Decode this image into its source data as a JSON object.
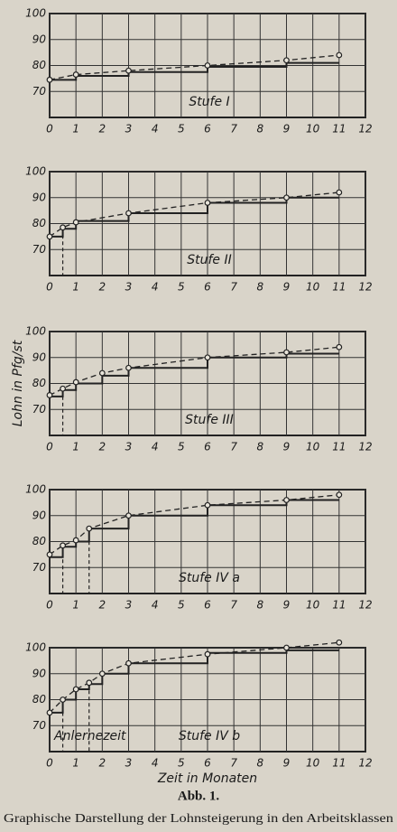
{
  "chart_data": [
    {
      "type": "line",
      "stage_label": "Stufe I",
      "xlim": [
        0,
        12
      ],
      "ylim": [
        60,
        100
      ],
      "xticks": [
        0,
        1,
        2,
        3,
        4,
        5,
        6,
        7,
        8,
        9,
        10,
        11,
        12
      ],
      "yticks": [
        70,
        80,
        90,
        100
      ],
      "grid": true,
      "droplines": [],
      "series": [
        {
          "step": true,
          "x": [
            0,
            1,
            3,
            6,
            9,
            11
          ],
          "values": [
            74.5,
            76,
            77.5,
            79.5,
            81,
            81
          ]
        },
        {
          "dashed": true,
          "markers": true,
          "x": [
            0,
            1,
            3,
            6,
            9,
            11
          ],
          "values": [
            74.5,
            76.5,
            78,
            80,
            82,
            84
          ]
        }
      ]
    },
    {
      "type": "line",
      "stage_label": "Stufe II",
      "xlim": [
        0,
        12
      ],
      "ylim": [
        60,
        100
      ],
      "xticks": [
        0,
        1,
        2,
        3,
        4,
        5,
        6,
        7,
        8,
        9,
        10,
        11,
        12
      ],
      "yticks": [
        70,
        80,
        90,
        100
      ],
      "grid": true,
      "droplines": [
        0.5
      ],
      "series": [
        {
          "step": true,
          "x": [
            0,
            0.5,
            1,
            3,
            6,
            9,
            11
          ],
          "values": [
            75,
            78,
            81,
            84,
            88,
            90,
            90
          ]
        },
        {
          "dashed": true,
          "markers": true,
          "x": [
            0,
            0.5,
            1,
            3,
            6,
            9,
            11
          ],
          "values": [
            75,
            78.5,
            80.5,
            84,
            88,
            90,
            92
          ]
        }
      ]
    },
    {
      "type": "line",
      "stage_label": "Stufe III",
      "ylabel": "Lohn in Pfg/st",
      "xlim": [
        0,
        12
      ],
      "ylim": [
        60,
        100
      ],
      "xticks": [
        0,
        1,
        2,
        3,
        4,
        5,
        6,
        7,
        8,
        9,
        10,
        11,
        12
      ],
      "yticks": [
        70,
        80,
        90,
        100
      ],
      "grid": true,
      "droplines": [
        0.5
      ],
      "series": [
        {
          "step": true,
          "x": [
            0,
            0.5,
            1,
            2,
            3,
            6,
            9,
            11
          ],
          "values": [
            75,
            77.5,
            80,
            83,
            86,
            90,
            91.5,
            91.5
          ]
        },
        {
          "dashed": true,
          "markers": true,
          "x": [
            0,
            0.5,
            1,
            2,
            3,
            6,
            9,
            11
          ],
          "values": [
            75.5,
            78,
            80.5,
            84,
            86,
            90,
            92,
            94
          ]
        }
      ]
    },
    {
      "type": "line",
      "stage_label": "Stufe IV a",
      "xlim": [
        0,
        12
      ],
      "ylim": [
        60,
        100
      ],
      "xticks": [
        0,
        1,
        2,
        3,
        4,
        5,
        6,
        7,
        8,
        9,
        10,
        11,
        12
      ],
      "yticks": [
        70,
        80,
        90,
        100
      ],
      "grid": true,
      "droplines": [
        0.5,
        1.5
      ],
      "series": [
        {
          "step": true,
          "x": [
            0,
            0.5,
            1,
            1.5,
            3,
            6,
            9,
            11
          ],
          "values": [
            74,
            78,
            80,
            85,
            90,
            94,
            96,
            96
          ]
        },
        {
          "dashed": true,
          "markers": true,
          "x": [
            0,
            0.5,
            1,
            1.5,
            3,
            6,
            9,
            11
          ],
          "values": [
            75,
            78.5,
            80.5,
            85,
            90,
            94,
            96,
            98
          ]
        }
      ]
    },
    {
      "type": "line",
      "stage_label": "Stufe IV b",
      "annotation": "Anlernezeit",
      "xlabel": "Zeit in Monaten",
      "xlim": [
        0,
        12
      ],
      "ylim": [
        60,
        100
      ],
      "xticks": [
        0,
        1,
        2,
        3,
        4,
        5,
        6,
        7,
        8,
        9,
        10,
        11,
        12
      ],
      "yticks": [
        70,
        80,
        90,
        100
      ],
      "grid": true,
      "droplines": [
        0.5,
        1.5
      ],
      "series": [
        {
          "step": true,
          "x": [
            0,
            0.5,
            1,
            1.5,
            2,
            3,
            6,
            9,
            11
          ],
          "values": [
            75,
            80,
            84,
            86,
            90,
            94,
            98,
            99,
            99
          ]
        },
        {
          "dashed": true,
          "markers": true,
          "x": [
            0,
            0.5,
            1,
            1.5,
            2,
            3,
            6,
            9,
            11
          ],
          "values": [
            75,
            80,
            84,
            86.5,
            90,
            94,
            97.5,
            100,
            102
          ]
        }
      ]
    }
  ],
  "figure": {
    "label": "Abb. 1.",
    "caption": "Graphische Darstellung der Lohnsteigerung in den Arbeitsklassen"
  }
}
